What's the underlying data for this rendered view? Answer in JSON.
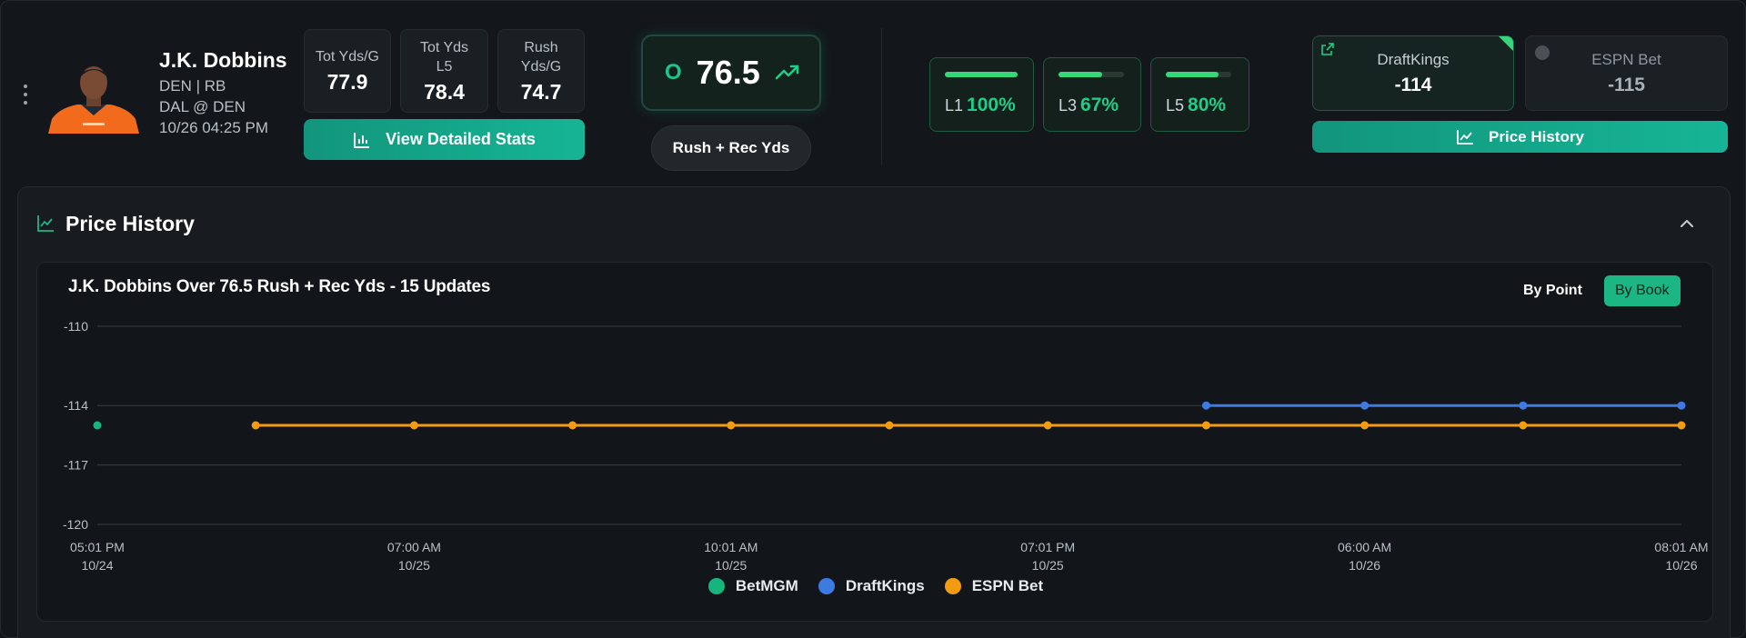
{
  "player": {
    "name": "J.K. Dobbins",
    "team_pos": "DEN | RB",
    "matchup": "DAL @ DEN",
    "datetime": "10/26 04:25 PM"
  },
  "stats": [
    {
      "label": "Tot Yds/G",
      "value": "77.9"
    },
    {
      "label": "Tot Yds L5",
      "value": "78.4"
    },
    {
      "label": "Rush Yds/G",
      "value": "74.7"
    }
  ],
  "buttons": {
    "view_stats": "View Detailed Stats",
    "price_history": "Price History"
  },
  "line": {
    "side": "O",
    "value": "76.5",
    "market": "Rush + Rec Yds"
  },
  "hit_rates": [
    {
      "label": "L1",
      "value": "100%",
      "fraction": 1.0
    },
    {
      "label": "L3",
      "value": "67%",
      "fraction": 0.67
    },
    {
      "label": "L5",
      "value": "80%",
      "fraction": 0.8
    }
  ],
  "books": {
    "draftkings": {
      "name": "DraftKings",
      "odds": "-114"
    },
    "espn": {
      "name": "ESPN Bet",
      "odds": "-115"
    }
  },
  "panel": {
    "title": "Price History",
    "chart_title": "J.K. Dobbins Over 76.5 Rush + Rec Yds - 15 Updates",
    "toggle_point": "By Point",
    "toggle_book": "By Book"
  },
  "colors": {
    "accent": "#1cb584",
    "betmgm": "#17b57e",
    "draftkings": "#3d7be3",
    "espn": "#f39c12"
  },
  "chart_data": {
    "type": "line",
    "title": "J.K. Dobbins Over 76.5 Rush + Rec Yds - 15 Updates",
    "y_ticks": [
      -110,
      -114,
      -117,
      -120
    ],
    "y_tick_labels": [
      "-110",
      "-114",
      "-117",
      "-120"
    ],
    "ylim": [
      -120,
      -110
    ],
    "x_ticks": [
      {
        "time": "05:01 PM",
        "date": "10/24"
      },
      {
        "time": "07:00 AM",
        "date": "10/25"
      },
      {
        "time": "10:01 AM",
        "date": "10/25"
      },
      {
        "time": "07:01 PM",
        "date": "10/25"
      },
      {
        "time": "06:00 AM",
        "date": "10/26"
      },
      {
        "time": "08:01 AM",
        "date": "10/26"
      }
    ],
    "grid": true,
    "legend_position": "bottom",
    "x_points": 11,
    "series": [
      {
        "name": "BetMGM",
        "values": [
          -115,
          null,
          null,
          null,
          null,
          null,
          null,
          null,
          null,
          null,
          null
        ]
      },
      {
        "name": "DraftKings",
        "values": [
          null,
          null,
          null,
          null,
          null,
          null,
          null,
          -114,
          -114,
          -114,
          -114
        ]
      },
      {
        "name": "ESPN Bet",
        "values": [
          null,
          -115,
          -115,
          -115,
          -115,
          -115,
          -115,
          -115,
          -115,
          -115,
          -115
        ]
      }
    ]
  }
}
